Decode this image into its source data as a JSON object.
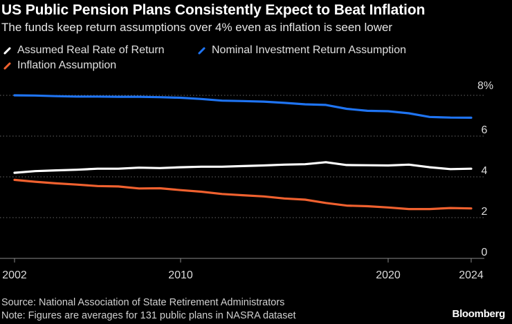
{
  "chart_data": {
    "type": "line",
    "title": "US Public Pension Plans Consistently Expect to Beat Inflation",
    "subtitle": "The funds keep return assumptions over 4% even as inflation is seen lower",
    "xlabel": "",
    "ylabel": "",
    "x": [
      2002,
      2003,
      2004,
      2005,
      2006,
      2007,
      2008,
      2009,
      2010,
      2011,
      2012,
      2013,
      2014,
      2015,
      2016,
      2017,
      2018,
      2019,
      2020,
      2021,
      2022,
      2023,
      2024
    ],
    "series": [
      {
        "name": "Assumed Real Rate of Return",
        "color": "#ffffff",
        "values": [
          4.2,
          4.28,
          4.32,
          4.35,
          4.4,
          4.4,
          4.45,
          4.43,
          4.47,
          4.5,
          4.5,
          4.53,
          4.56,
          4.6,
          4.62,
          4.72,
          4.58,
          4.57,
          4.56,
          4.6,
          4.47,
          4.38,
          4.4
        ]
      },
      {
        "name": "Nominal Investment Return Assumption",
        "color": "#1f74f2",
        "values": [
          8.0,
          7.99,
          7.96,
          7.94,
          7.94,
          7.93,
          7.93,
          7.91,
          7.88,
          7.82,
          7.74,
          7.72,
          7.69,
          7.63,
          7.56,
          7.53,
          7.34,
          7.24,
          7.22,
          7.12,
          6.94,
          6.91,
          6.9
        ]
      },
      {
        "name": "Inflation Assumption",
        "color": "#f0612f",
        "values": [
          3.85,
          3.76,
          3.68,
          3.62,
          3.55,
          3.53,
          3.43,
          3.44,
          3.35,
          3.27,
          3.16,
          3.1,
          3.04,
          2.94,
          2.88,
          2.72,
          2.59,
          2.56,
          2.5,
          2.42,
          2.42,
          2.47,
          2.45
        ]
      }
    ],
    "ylim": [
      0,
      8
    ],
    "yticks": [
      0,
      2,
      4,
      6
    ],
    "top_tick_label": "8%",
    "xticks": [
      2002,
      2010,
      2020,
      2024
    ],
    "grid": "horizontal dotted",
    "legend": "top-left"
  },
  "legend": [
    {
      "label": "Assumed Real Rate of Return",
      "color": "#ffffff"
    },
    {
      "label": "Nominal Investment Return Assumption",
      "color": "#1f74f2"
    },
    {
      "label": "Inflation Assumption",
      "color": "#f0612f"
    }
  ],
  "footer": {
    "source": "Source: National Association of State Retirement Administrators",
    "note": "Note: Figures are averages for 131 public plans in NASRA dataset"
  },
  "brand": "Bloomberg"
}
